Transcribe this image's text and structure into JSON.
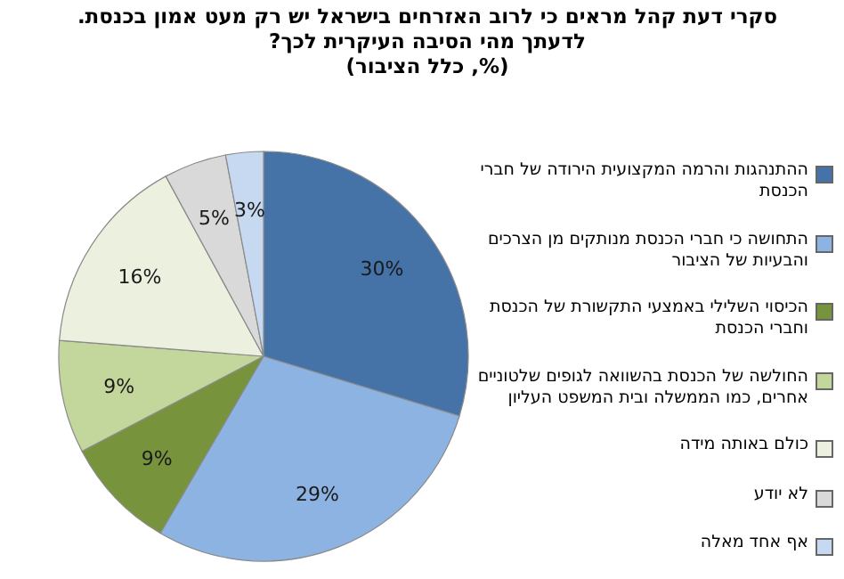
{
  "chart_data": {
    "type": "pie",
    "title": "סקרי דעת קהל מראים כי  לרוב האזרחים בישראל יש רק מעט אמון בכנסת. לדעתך מהי הסיבה העיקרית לכך?",
    "subtitle": "(%, כלל הציבור)",
    "categories": [
      "ההתנהגות והרמה המקצועית הירודה של חברי הכנסת",
      "התחושה כי חברי הכנסת מנותקים מן הצרכים והבעיות של הציבור",
      "הכיסוי השלילי באמצעי התקשורת של הכנסת וחברי הכנסת",
      "החולשה של הכנסת בהשוואה לגופים שלטוניים אחרים, כמו הממשלה ובית המשפט העליון",
      "כולם באותה מידה",
      "לא יודע",
      "אף אחד מאלה"
    ],
    "values": [
      30,
      29,
      9,
      9,
      16,
      5,
      3
    ],
    "colors": [
      "#4572a7",
      "#8db3e2",
      "#77933c",
      "#c3d69b",
      "#ebf1de",
      "#d9d9d9",
      "#c6d9f1"
    ],
    "value_labels": [
      "30%",
      "29%",
      "9%",
      "9%",
      "16%",
      "5%",
      "3%"
    ],
    "legend": "right"
  }
}
